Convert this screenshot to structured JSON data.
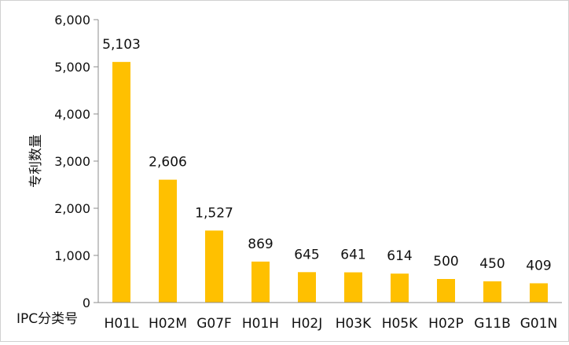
{
  "chart_data": {
    "type": "bar",
    "ylabel": "专利数量",
    "xlabel": "IPC分类号",
    "categories": [
      "H01L",
      "H02M",
      "G07F",
      "H01H",
      "H02J",
      "H03K",
      "H05K",
      "H02P",
      "G11B",
      "G01N"
    ],
    "values": [
      5103,
      2606,
      1527,
      869,
      645,
      641,
      614,
      500,
      450,
      409
    ],
    "value_labels": [
      "5,103",
      "2,606",
      "1,527",
      "869",
      "645",
      "641",
      "614",
      "500",
      "450",
      "409"
    ],
    "ylim": [
      0,
      6000
    ],
    "yticks": [
      0,
      1000,
      2000,
      3000,
      4000,
      5000,
      6000
    ],
    "ytick_labels": [
      "0",
      "1,000",
      "2,000",
      "3,000",
      "4,000",
      "5,000",
      "6,000"
    ],
    "grid": false,
    "legend": "none",
    "bar_color": "#FFC000"
  }
}
